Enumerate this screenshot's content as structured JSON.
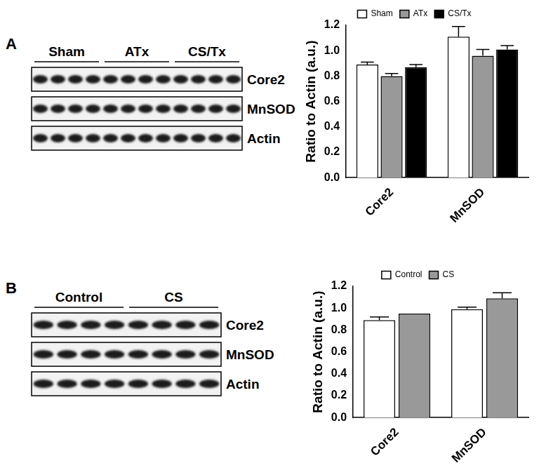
{
  "panels": [
    {
      "letter": "A",
      "blot": {
        "groups": [
          {
            "label": "Sham",
            "lanes": 4
          },
          {
            "label": "ATx",
            "lanes": 4
          },
          {
            "label": "CS/Tx",
            "lanes": 4
          }
        ],
        "rows": [
          "Core2",
          "MnSOD",
          "Actin"
        ]
      }
    },
    {
      "letter": "B",
      "blot": {
        "groups": [
          {
            "label": "Control",
            "lanes": 4
          },
          {
            "label": "CS",
            "lanes": 4
          }
        ],
        "rows": [
          "Core2",
          "MnSOD",
          "Actin"
        ]
      }
    }
  ],
  "chart_data": [
    {
      "type": "bar",
      "y_label": "Ratio to Actin (a.u.)",
      "categories": [
        "Core2",
        "MnSOD"
      ],
      "series": [
        {
          "name": "Sham",
          "color": "#ffffff",
          "values": [
            0.89,
            1.11
          ],
          "errors": [
            0.02,
            0.08
          ]
        },
        {
          "name": "ATx",
          "color": "#999999",
          "values": [
            0.8,
            0.96
          ],
          "errors": [
            0.02,
            0.05
          ]
        },
        {
          "name": "CS/Tx",
          "color": "#000000",
          "values": [
            0.87,
            1.01
          ],
          "errors": [
            0.02,
            0.03
          ]
        }
      ],
      "ylim": [
        0,
        1.2
      ],
      "yticks": [
        {
          "value": 0,
          "label": "0.0"
        },
        0.2,
        0.4,
        0.6,
        0.8,
        {
          "value": 1,
          "label": "1.0"
        },
        1.2
      ],
      "grid": false,
      "legend": "top"
    },
    {
      "type": "bar",
      "y_label": "Ratio to Actin (a.u.)",
      "categories": [
        "Core2",
        "MnSOD"
      ],
      "series": [
        {
          "name": "Control",
          "color": "#ffffff",
          "values": [
            0.89,
            0.99
          ],
          "errors": [
            0.03,
            0.02
          ]
        },
        {
          "name": "CS",
          "color": "#999999",
          "values": [
            0.95,
            1.09
          ],
          "errors": [
            0,
            0.05
          ]
        }
      ],
      "ylim": [
        0,
        1.2
      ],
      "yticks": [
        {
          "value": 0,
          "label": "0.0"
        },
        0.2,
        0.4,
        0.6,
        0.8,
        {
          "value": 1,
          "label": "1.0"
        },
        1.2
      ],
      "grid": false,
      "legend": "top"
    }
  ]
}
